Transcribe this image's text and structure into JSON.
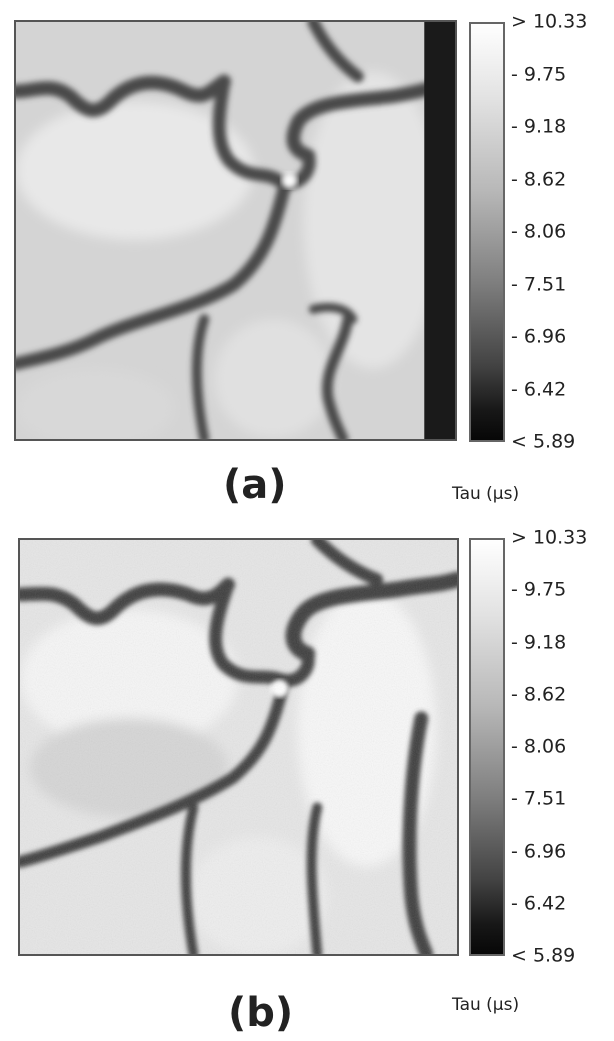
{
  "panels": [
    {
      "label": "(a)",
      "unit": "Tau (μs)",
      "scale_ticks": [
        "> 10.33",
        "- 9.75",
        "- 9.18",
        "- 8.62",
        "- 8.06",
        "- 7.51",
        "- 6.96",
        "- 6.42",
        "< 5.89"
      ]
    },
    {
      "label": "(b)",
      "unit": "Tau (μs)",
      "scale_ticks": [
        "> 10.33",
        "- 9.75",
        "- 9.18",
        "- 8.62",
        "- 8.06",
        "- 7.51",
        "- 6.96",
        "- 6.42",
        "< 5.89"
      ]
    }
  ]
}
